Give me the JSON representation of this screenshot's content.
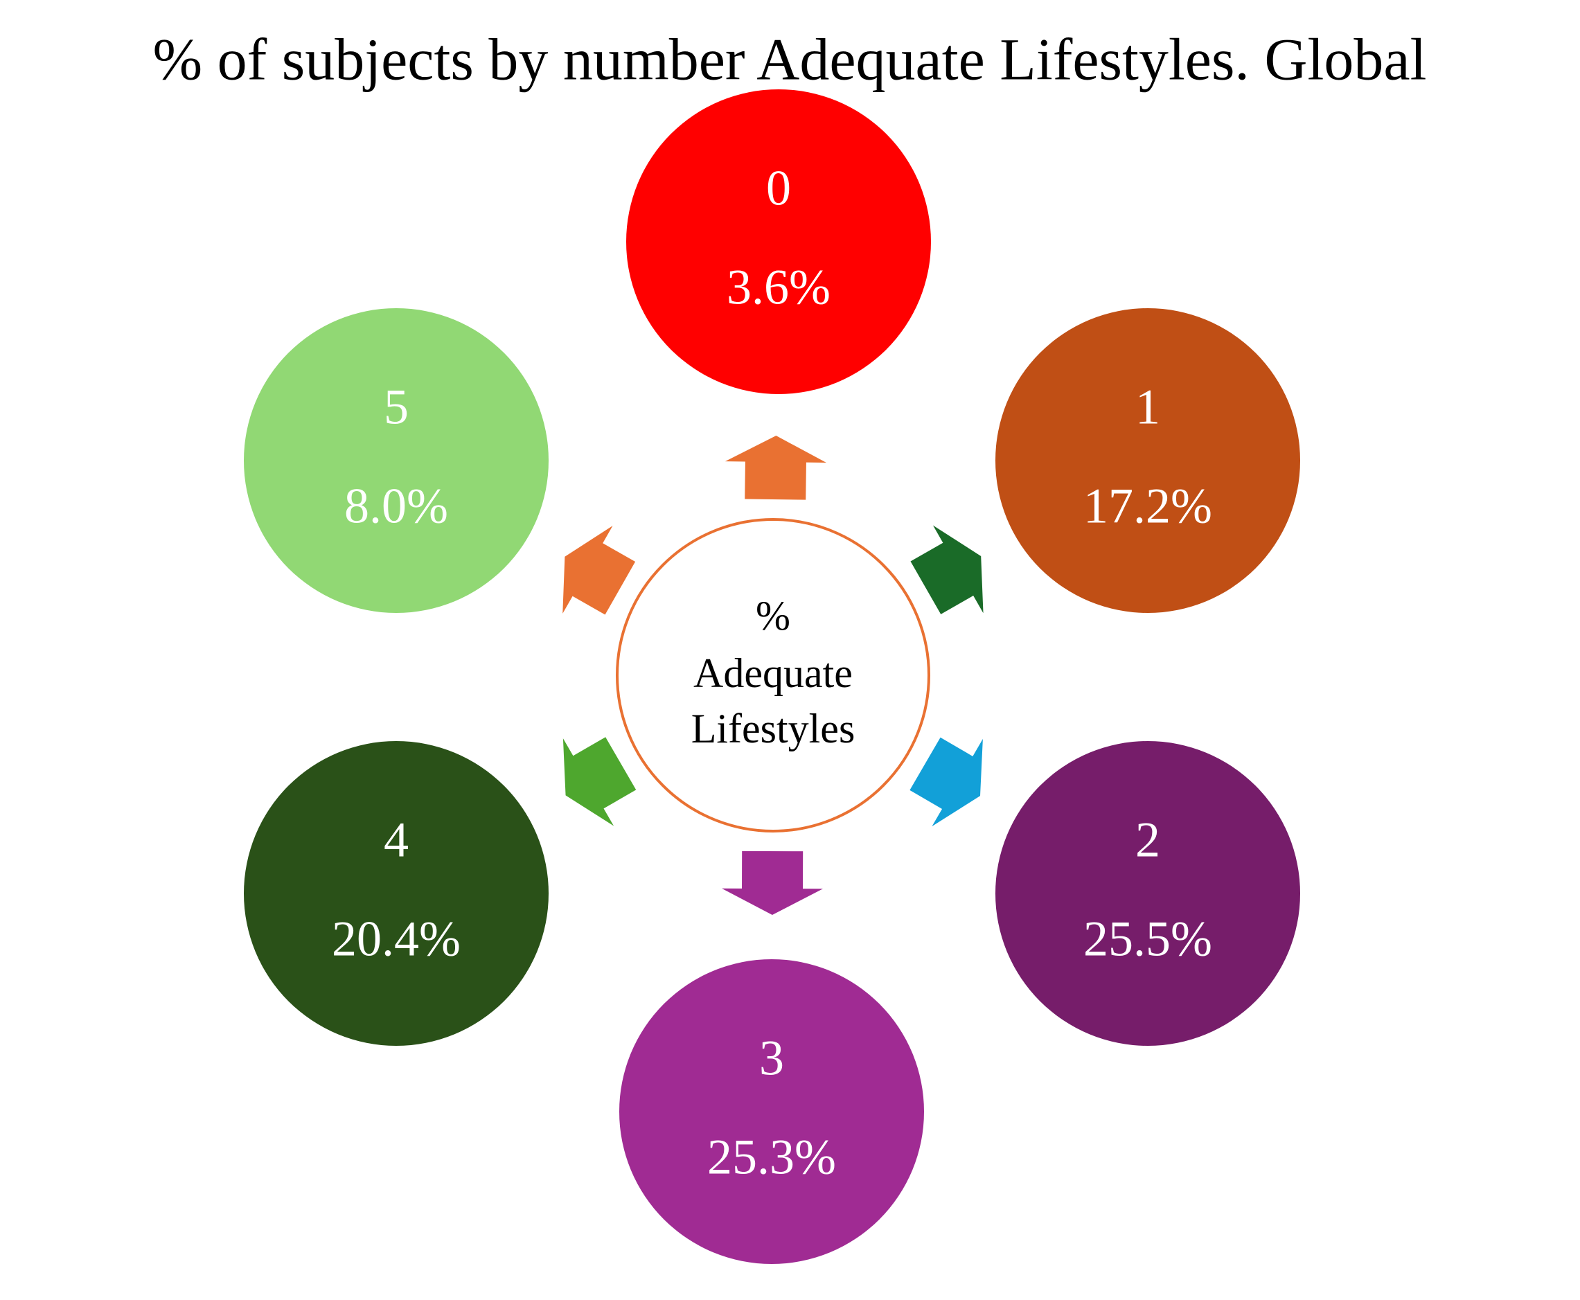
{
  "title": "% of subjects by number Adequate Lifestyles. Global",
  "center": {
    "lines": [
      "%",
      "Adequate",
      "Lifestyles"
    ]
  },
  "nodes": [
    {
      "label": "0",
      "value": "3.6%"
    },
    {
      "label": "1",
      "value": "17.2%"
    },
    {
      "label": "2",
      "value": "25.5%"
    },
    {
      "label": "3",
      "value": "25.3%"
    },
    {
      "label": "4",
      "value": "20.4%"
    },
    {
      "label": "5",
      "value": "8.0%"
    }
  ]
}
